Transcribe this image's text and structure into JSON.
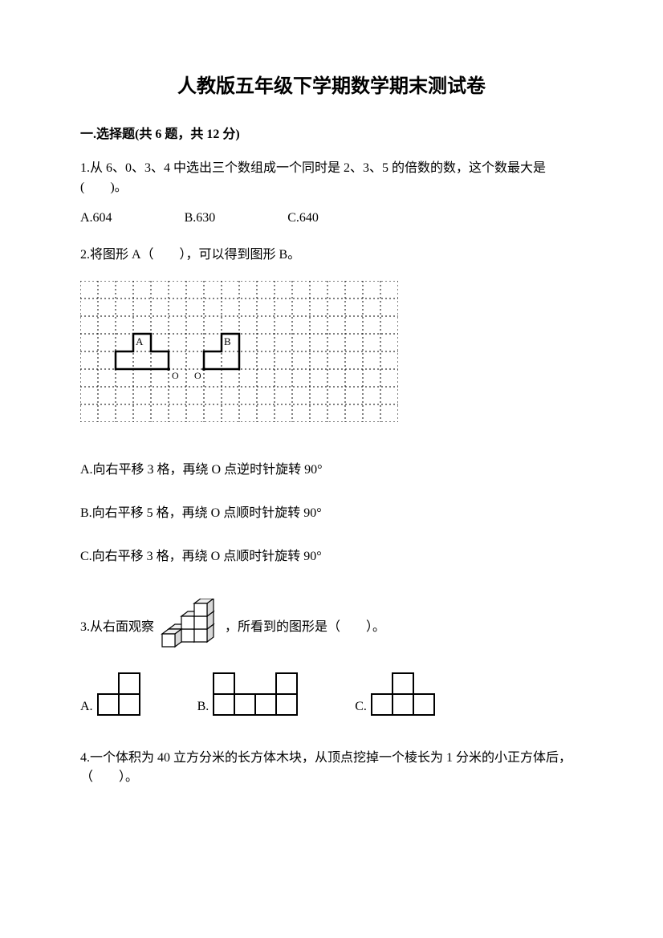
{
  "title": "人教版五年级下学期数学期末测试卷",
  "section1": {
    "heading": "一.选择题(共 6 题，共 12 分)",
    "q1": {
      "text": "1.从 6、0、3、4 中选出三个数组成一个同时是 2、3、5 的倍数的数，这个数最大是(　　)。",
      "optA": "A.604",
      "optB": "B.630",
      "optC": "C.640"
    },
    "q2": {
      "text": "2.将图形 A（　　），可以得到图形 B。",
      "grid": {
        "cols": 18,
        "rows": 8,
        "cell": 22,
        "dash_color": "#000000",
        "shape_color": "#000000",
        "labelA": "A",
        "labelB": "B",
        "labelO1": "O",
        "labelO2": "O"
      },
      "optA": "A.向右平移 3 格，再绕 O 点逆时针旋转 90°",
      "optB": "B.向右平移 5 格，再绕 O 点顺时针旋转 90°",
      "optC": "C.向右平移 3 格，再绕 O 点顺时针旋转 90°"
    },
    "q3": {
      "prefix": "3.从右面观察",
      "suffix": "，所看到的图形是（　　）。",
      "cube_fill": "#ffffff",
      "cube_stroke": "#000000",
      "optA": "A.",
      "optB": "B.",
      "optC": "C.",
      "square_size": 26,
      "stroke_width": 2
    },
    "q4": {
      "text": "4.一个体积为 40 立方分米的长方体木块，从顶点挖掉一个棱长为 1 分米的小正方体后，（　　）。"
    }
  }
}
